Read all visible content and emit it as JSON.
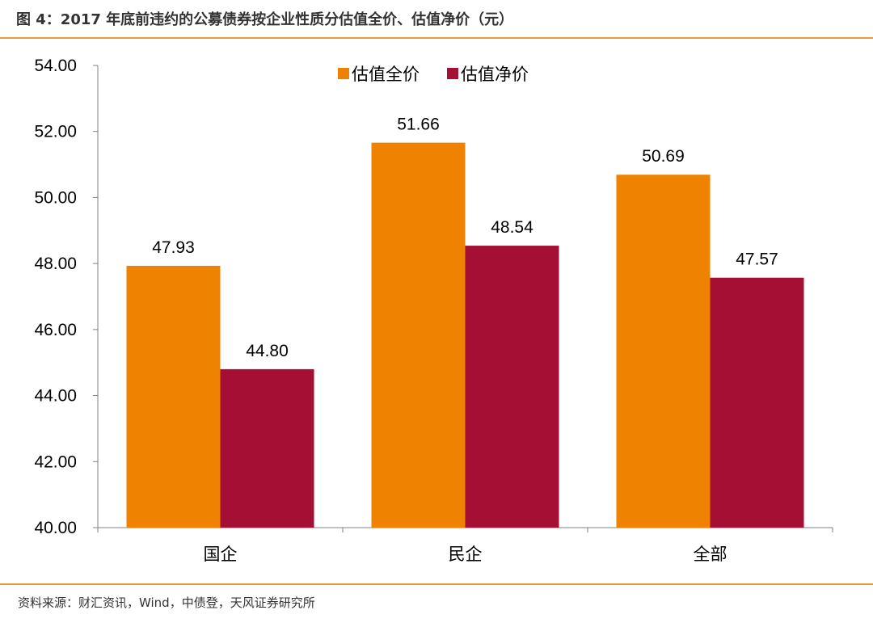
{
  "title": "图 4：2017 年底前违约的公募债券按企业性质分估值全价、估值净价（元）",
  "source": "资料来源：财汇资讯，Wind，中债登，天风证券研究所",
  "chart_data": {
    "type": "bar",
    "categories": [
      "国企",
      "民企",
      "全部"
    ],
    "series": [
      {
        "name": "估值全价",
        "values": [
          47.93,
          51.66,
          50.69
        ],
        "color": "#ef8200"
      },
      {
        "name": "估值净价",
        "values": [
          44.8,
          48.54,
          47.57
        ],
        "color": "#a50f33"
      }
    ],
    "ylim": [
      40,
      54
    ],
    "yticks": [
      "40.00",
      "42.00",
      "44.00",
      "46.00",
      "48.00",
      "50.00",
      "52.00",
      "54.00"
    ],
    "data_labels": true,
    "grid": false,
    "legend": "top-center"
  }
}
